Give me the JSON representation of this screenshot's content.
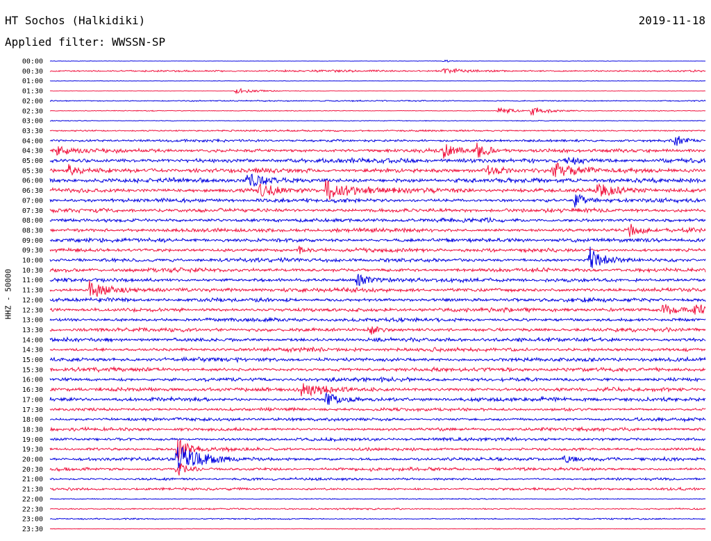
{
  "header": {
    "station": "HT Sochos (Halkidiki)",
    "date": "2019-11-18",
    "filter": "Applied filter: WWSSN-SP"
  },
  "channel_label": "HHZ - 50000",
  "colors": {
    "trace_a": "#0000e0",
    "trace_b": "#f0103c",
    "text": "#000000"
  },
  "chart_data": {
    "type": "line",
    "subtype": "helicorder",
    "ylabel": "HHZ - 50000",
    "tick_labels": [
      "00:00",
      "00:30",
      "01:00",
      "01:30",
      "02:00",
      "02:30",
      "03:00",
      "03:30",
      "04:00",
      "04:30",
      "05:00",
      "05:30",
      "06:00",
      "06:30",
      "07:00",
      "07:30",
      "08:00",
      "08:30",
      "09:00",
      "09:30",
      "10:00",
      "10:30",
      "11:00",
      "11:30",
      "12:00",
      "12:30",
      "13:00",
      "13:30",
      "14:00",
      "14:30",
      "15:00",
      "15:30",
      "16:00",
      "16:30",
      "17:00",
      "17:30",
      "18:00",
      "18:30",
      "19:00",
      "19:30",
      "20:00",
      "20:30",
      "21:00",
      "21:30",
      "22:00",
      "22:30",
      "23:00",
      "23:30"
    ],
    "trace_colors": [
      "#0000e0",
      "#f0103c"
    ],
    "row_noise_level": [
      0.3,
      1.5,
      0.4,
      0.3,
      1.0,
      0.6,
      0.6,
      1.4,
      2.0,
      3.0,
      3.5,
      3.5,
      3.5,
      3.5,
      3.0,
      3.0,
      3.0,
      3.0,
      3.0,
      3.0,
      3.0,
      3.0,
      3.0,
      3.0,
      3.0,
      3.0,
      2.8,
      2.8,
      3.0,
      3.0,
      3.0,
      3.0,
      3.0,
      3.0,
      3.0,
      2.5,
      2.5,
      2.5,
      2.5,
      2.5,
      2.5,
      2.5,
      2.0,
      2.0,
      0.8,
      1.2,
      1.0,
      0.5
    ],
    "events": [
      {
        "row": 0,
        "minute": 18.0,
        "amp": 3,
        "dur": 0.3
      },
      {
        "row": 1,
        "minute": 18.0,
        "amp": 5,
        "dur": 1.2
      },
      {
        "row": 3,
        "minute": 8.5,
        "amp": 4,
        "dur": 1.5
      },
      {
        "row": 5,
        "minute": 20.5,
        "amp": 6,
        "dur": 1.0
      },
      {
        "row": 5,
        "minute": 22.0,
        "amp": 7,
        "dur": 1.2
      },
      {
        "row": 8,
        "minute": 28.6,
        "amp": 9,
        "dur": 0.6
      },
      {
        "row": 9,
        "minute": 0.3,
        "amp": 8,
        "dur": 0.6
      },
      {
        "row": 9,
        "minute": 18.0,
        "amp": 9,
        "dur": 0.8
      },
      {
        "row": 9,
        "minute": 19.5,
        "amp": 9,
        "dur": 0.8
      },
      {
        "row": 10,
        "minute": 23.6,
        "amp": 8,
        "dur": 1.0
      },
      {
        "row": 11,
        "minute": 0.8,
        "amp": 9,
        "dur": 0.5
      },
      {
        "row": 11,
        "minute": 20.0,
        "amp": 8,
        "dur": 1.0
      },
      {
        "row": 11,
        "minute": 23.0,
        "amp": 11,
        "dur": 1.4
      },
      {
        "row": 12,
        "minute": 9.0,
        "amp": 10,
        "dur": 1.5
      },
      {
        "row": 13,
        "minute": 9.5,
        "amp": 8,
        "dur": 1.4
      },
      {
        "row": 13,
        "minute": 12.6,
        "amp": 16,
        "dur": 1.6
      },
      {
        "row": 13,
        "minute": 25.0,
        "amp": 9,
        "dur": 1.8
      },
      {
        "row": 14,
        "minute": 24.0,
        "amp": 12,
        "dur": 0.8
      },
      {
        "row": 17,
        "minute": 26.5,
        "amp": 9,
        "dur": 0.8
      },
      {
        "row": 19,
        "minute": 11.4,
        "amp": 8,
        "dur": 0.5
      },
      {
        "row": 20,
        "minute": 24.7,
        "amp": 20,
        "dur": 0.8
      },
      {
        "row": 22,
        "minute": 14.0,
        "amp": 9,
        "dur": 1.0
      },
      {
        "row": 23,
        "minute": 1.8,
        "amp": 13,
        "dur": 1.4
      },
      {
        "row": 25,
        "minute": 28.0,
        "amp": 9,
        "dur": 1.0
      },
      {
        "row": 25,
        "minute": 29.5,
        "amp": 10,
        "dur": 0.8
      },
      {
        "row": 27,
        "minute": 14.6,
        "amp": 8,
        "dur": 0.8
      },
      {
        "row": 33,
        "minute": 11.5,
        "amp": 8,
        "dur": 2.0
      },
      {
        "row": 34,
        "minute": 12.6,
        "amp": 10,
        "dur": 1.0
      },
      {
        "row": 39,
        "minute": 5.8,
        "amp": 20,
        "dur": 0.8
      },
      {
        "row": 40,
        "minute": 5.8,
        "amp": 22,
        "dur": 1.8
      },
      {
        "row": 40,
        "minute": 23.5,
        "amp": 7,
        "dur": 0.8
      },
      {
        "row": 41,
        "minute": 5.8,
        "amp": 12,
        "dur": 0.8
      }
    ]
  }
}
